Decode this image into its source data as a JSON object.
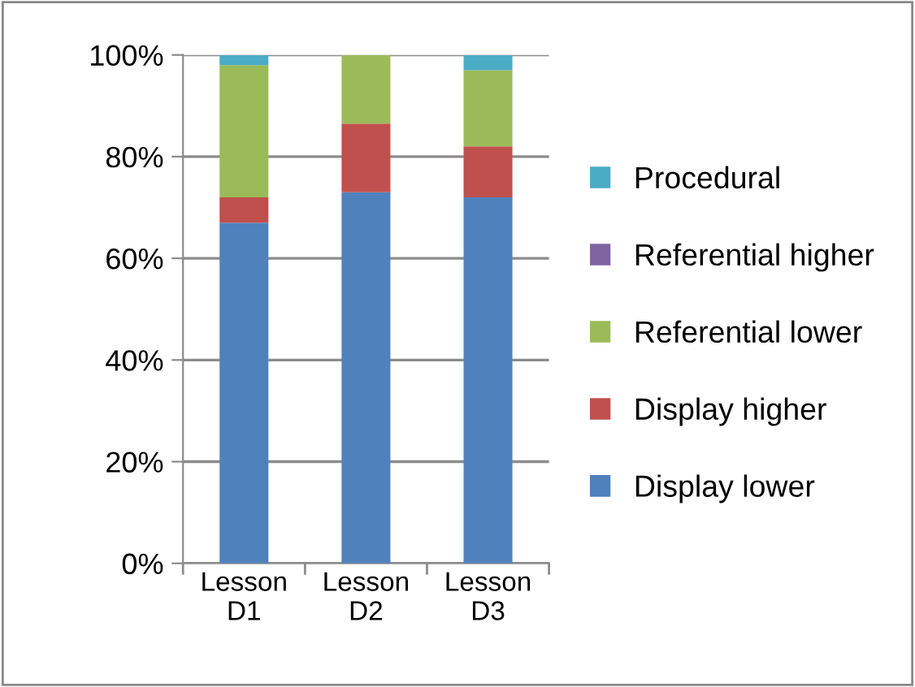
{
  "chart_data": {
    "type": "bar",
    "stacked": true,
    "categories": [
      "Lesson\nD1",
      "Lesson\nD2",
      "Lesson\nD3"
    ],
    "series": [
      {
        "name": "Display lower",
        "color": "#4f81bd",
        "values": [
          67,
          73,
          72
        ]
      },
      {
        "name": "Display higher",
        "color": "#c0504d",
        "values": [
          5,
          13.5,
          10
        ]
      },
      {
        "name": "Referential lower",
        "color": "#9bbb59",
        "values": [
          26,
          13.5,
          15
        ]
      },
      {
        "name": "Referential higher",
        "color": "#8064a2",
        "values": [
          0,
          0,
          0
        ]
      },
      {
        "name": "Procedural",
        "color": "#4bacc6",
        "values": [
          2,
          0,
          3
        ]
      }
    ],
    "ylim": [
      0,
      100
    ],
    "yticks": [
      {
        "value": 0,
        "label": "0%"
      },
      {
        "value": 20,
        "label": "20%"
      },
      {
        "value": 40,
        "label": "40%"
      },
      {
        "value": 60,
        "label": "60%"
      },
      {
        "value": 80,
        "label": "80%"
      },
      {
        "value": 100,
        "label": "100%"
      }
    ],
    "grid": "y",
    "legend": "right"
  }
}
